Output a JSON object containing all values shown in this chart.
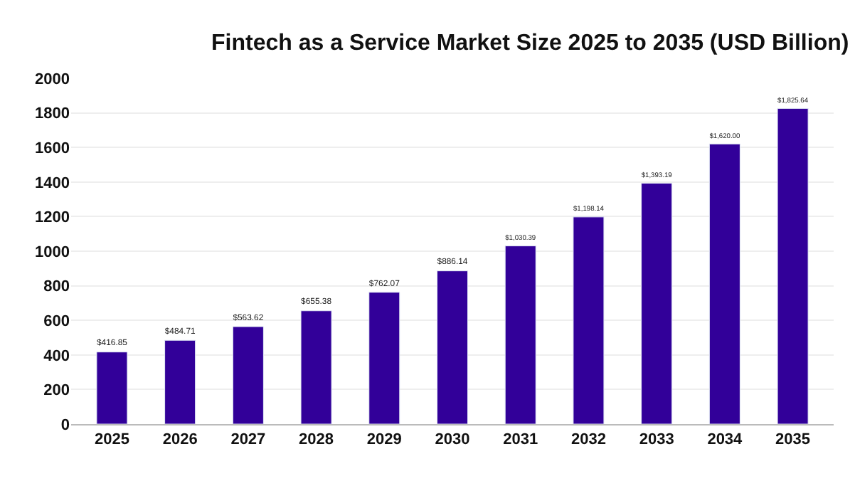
{
  "chart_data": {
    "type": "bar",
    "title": "Fintech as a Service Market Size 2025 to 2035 (USD Billion)",
    "categories": [
      "2025",
      "2026",
      "2027",
      "2028",
      "2029",
      "2030",
      "2031",
      "2032",
      "2033",
      "2034",
      "2035"
    ],
    "values": [
      416.85,
      484.71,
      563.62,
      655.38,
      762.07,
      886.14,
      1030.39,
      1198.14,
      1393.19,
      1620.0,
      1825.64
    ],
    "value_labels": [
      "$416.85",
      "$484.71",
      "$563.62",
      "$655.38",
      "$762.07",
      "$886.14",
      "$1,030.39",
      "$1,198.14",
      "$1,393.19",
      "$1,620.00",
      "$1,825.64"
    ],
    "color": "#320099",
    "ylim": [
      0,
      2000
    ],
    "yticks": [
      0,
      200,
      400,
      600,
      800,
      1000,
      1200,
      1400,
      1600,
      1800,
      2000
    ],
    "grid": "y"
  }
}
